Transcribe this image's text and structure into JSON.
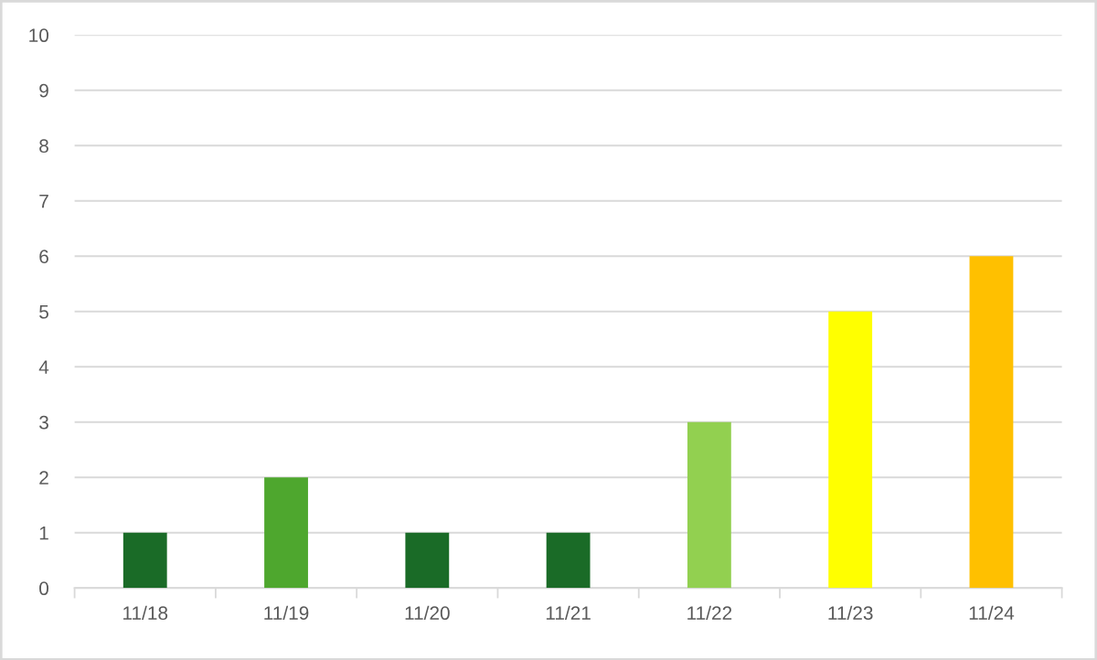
{
  "chart_data": {
    "type": "bar",
    "categories": [
      "11/18",
      "11/19",
      "11/20",
      "11/21",
      "11/22",
      "11/23",
      "11/24"
    ],
    "values": [
      1,
      2,
      1,
      1,
      3,
      5,
      6
    ],
    "colors": [
      "#1a6b27",
      "#4ea72e",
      "#1a6b27",
      "#1a6b27",
      "#92d050",
      "#ffff00",
      "#ffc000"
    ],
    "ylim": [
      0,
      10
    ],
    "yticks": [
      0,
      1,
      2,
      3,
      4,
      5,
      6,
      7,
      8,
      9,
      10
    ],
    "grid": "y",
    "legend": false
  }
}
